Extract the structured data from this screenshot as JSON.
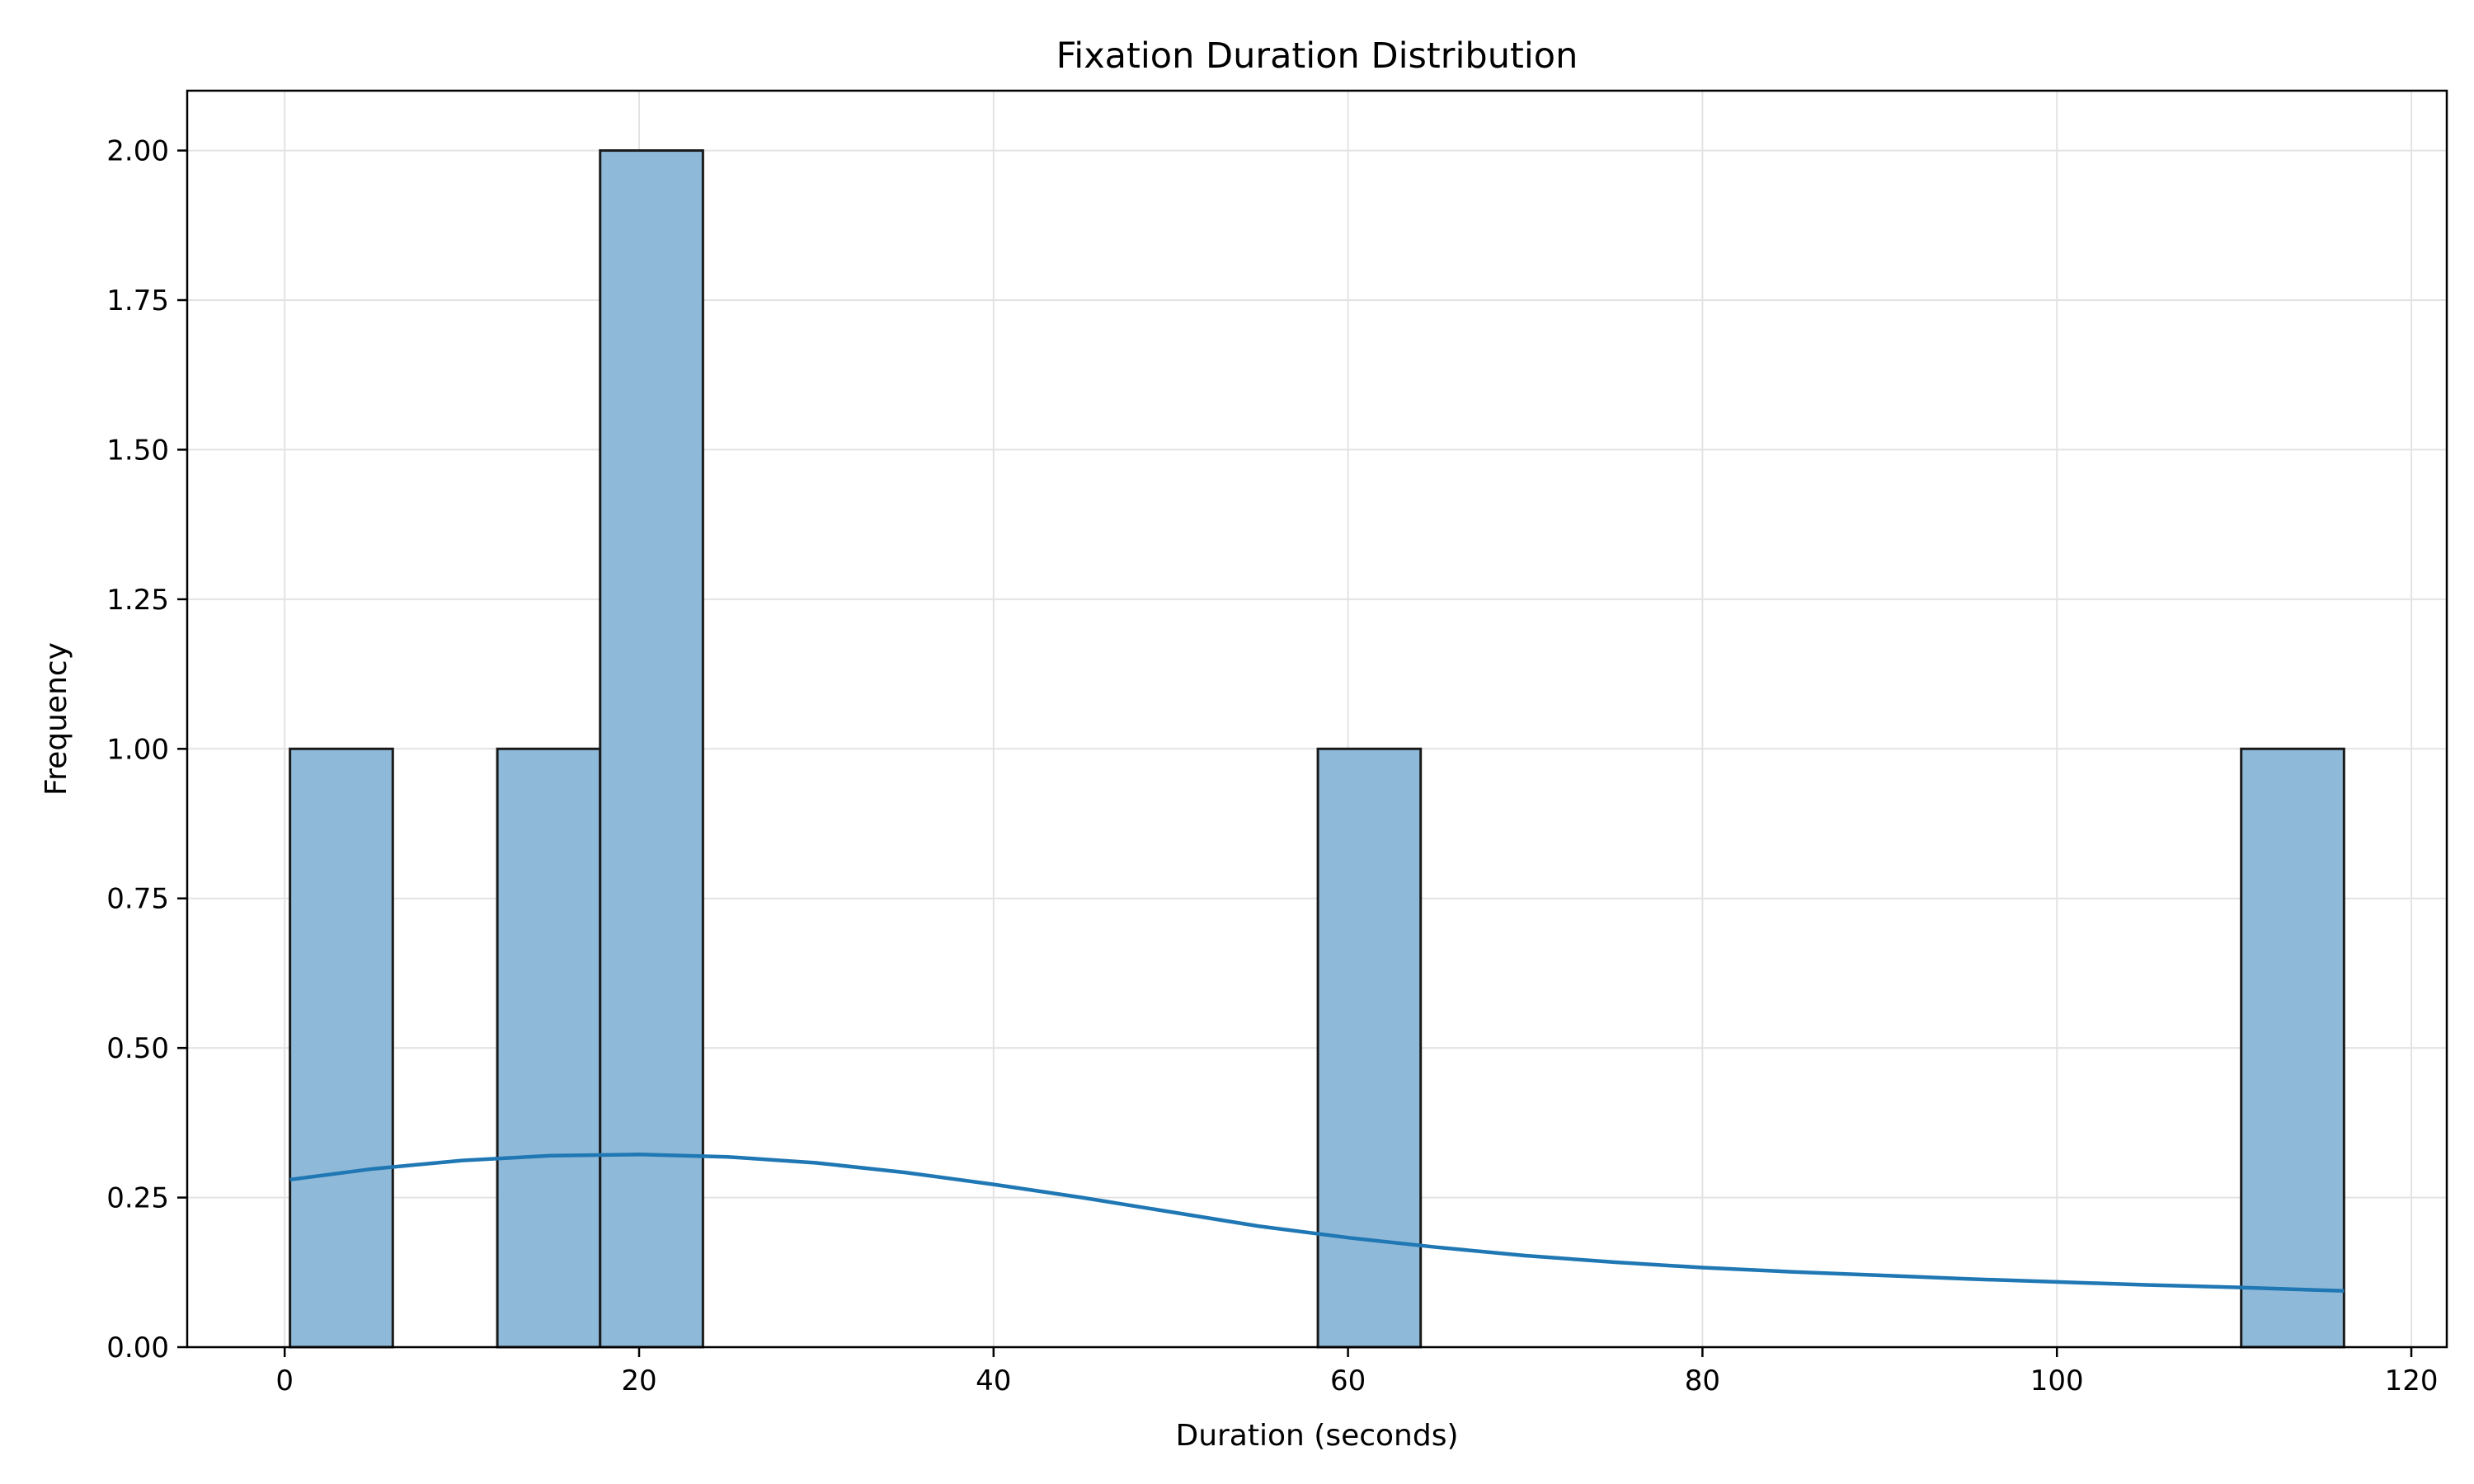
{
  "chart_data": {
    "type": "bar",
    "title": "Fixation Duration Distribution",
    "xlabel": "Duration (seconds)",
    "ylabel": "Frequency",
    "xlim": [
      -5.5,
      122
    ],
    "ylim": [
      0,
      2.1
    ],
    "x_ticks": [
      0,
      20,
      40,
      60,
      80,
      100,
      120
    ],
    "y_ticks": [
      0.0,
      0.25,
      0.5,
      0.75,
      1.0,
      1.25,
      1.5,
      1.75,
      2.0
    ],
    "y_tick_labels": [
      "0.00",
      "0.25",
      "0.50",
      "0.75",
      "1.00",
      "1.25",
      "1.50",
      "1.75",
      "2.00"
    ],
    "grid": true,
    "bins": [
      {
        "x0": 0.3,
        "x1": 6.1,
        "count": 1
      },
      {
        "x0": 12.0,
        "x1": 17.8,
        "count": 1
      },
      {
        "x0": 17.8,
        "x1": 23.6,
        "count": 2
      },
      {
        "x0": 58.3,
        "x1": 64.1,
        "count": 1
      },
      {
        "x0": 110.4,
        "x1": 116.2,
        "count": 1
      }
    ],
    "kde": {
      "x": [
        0.3,
        5,
        10,
        15,
        20,
        25,
        30,
        35,
        40,
        45,
        50,
        55,
        60,
        65,
        70,
        75,
        80,
        85,
        90,
        95,
        100,
        105,
        110,
        116.2
      ],
      "y": [
        0.28,
        0.298,
        0.312,
        0.32,
        0.322,
        0.318,
        0.308,
        0.292,
        0.272,
        0.25,
        0.226,
        0.202,
        0.183,
        0.167,
        0.153,
        0.142,
        0.133,
        0.126,
        0.12,
        0.114,
        0.109,
        0.104,
        0.1,
        0.094
      ]
    },
    "colors": {
      "bar_fill": "#8fb9d9",
      "bar_edge": "#1a1a1a",
      "kde_line": "#1f77b4",
      "grid": "#e3e3e3"
    }
  }
}
